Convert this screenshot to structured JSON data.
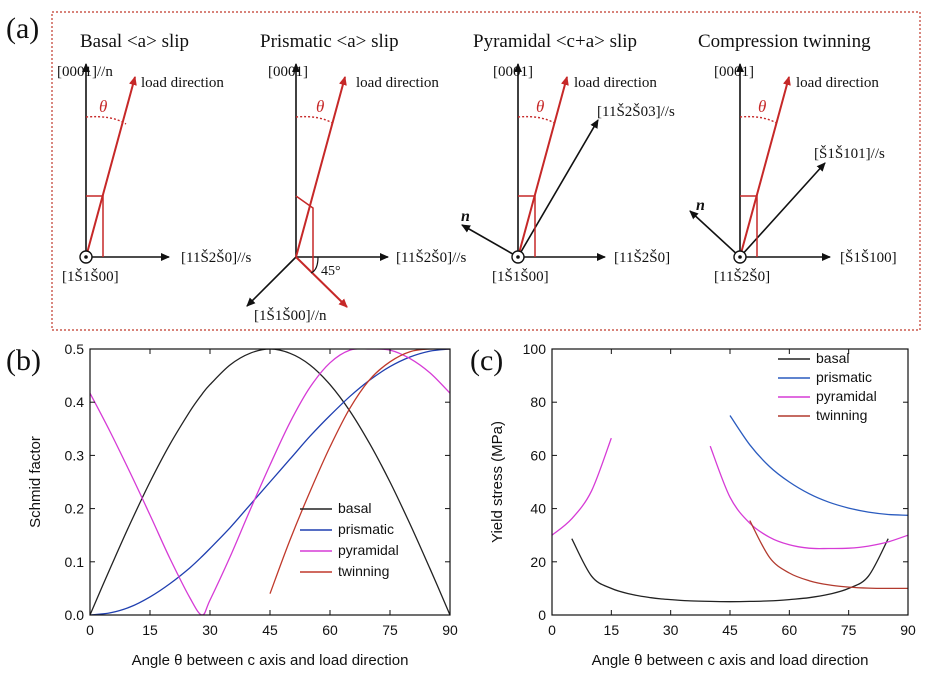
{
  "panels": {
    "a": {
      "label": "(a)",
      "colors": {
        "frame": "#c0392b",
        "red": "#c62828",
        "black": "#111111"
      },
      "diagrams": [
        {
          "title": "Basal <a> slip",
          "vertical_label": "[0001]//n",
          "horizontal_label": "[11Š2Š0]//s",
          "origin_label": "[1Š1Š00]",
          "load_label": "load direction",
          "theta": "θ"
        },
        {
          "title": "Prismatic <a> slip",
          "vertical_label": "[0001]",
          "horizontal_label": "[11Š2Š0]//s",
          "diagonal_label": "[1Š1Š00]//n",
          "angle_label": "45°",
          "load_label": "load direction",
          "theta": "θ"
        },
        {
          "title": "Pyramidal <c+a> slip",
          "vertical_label": "[0001]",
          "horizontal_label": "[11Š2Š0]",
          "slip_label": "[11Š2Š03]//s",
          "normal_label": "n",
          "origin_label": "[1Š1Š00]",
          "load_label": "load direction",
          "theta": "θ"
        },
        {
          "title": "Compression twinning",
          "vertical_label": "[0001]",
          "horizontal_label": "[Š1Š100]",
          "slip_label": "[Š1Š101]//s",
          "normal_label": "n",
          "origin_label": "[11Š2Š0]",
          "load_label": "load direction",
          "theta": "θ"
        }
      ]
    },
    "b": {
      "label": "(b)"
    },
    "c": {
      "label": "(c)"
    }
  },
  "chart_data": [
    {
      "id": "b",
      "type": "line",
      "xlabel": "Angle θ between c axis and load direction",
      "ylabel": "Schmid factor",
      "xlim": [
        0,
        90
      ],
      "ylim": [
        0,
        0.5
      ],
      "xticks": [
        0,
        15,
        30,
        45,
        60,
        75,
        90
      ],
      "yticks": [
        0.0,
        0.1,
        0.2,
        0.3,
        0.4,
        0.5
      ],
      "ytick_labels": [
        "0.0",
        "0.1",
        "0.2",
        "0.3",
        "0.4",
        "0.5"
      ],
      "legend_position": "bottom-right",
      "x": [
        0,
        5,
        10,
        15,
        20,
        25,
        28,
        30,
        35,
        40,
        45,
        50,
        55,
        60,
        65,
        70,
        75,
        80,
        85,
        90
      ],
      "series": [
        {
          "name": "basal",
          "color": "#222222",
          "values": [
            0.0,
            0.087,
            0.171,
            0.25,
            0.321,
            0.383,
            0.415,
            0.433,
            0.47,
            0.492,
            0.5,
            0.492,
            0.47,
            0.433,
            0.383,
            0.321,
            0.25,
            0.171,
            0.087,
            0.0
          ]
        },
        {
          "name": "prismatic",
          "color": "#1f3fb0",
          "values": [
            0.0,
            0.004,
            0.015,
            0.034,
            0.059,
            0.089,
            0.11,
            0.125,
            0.164,
            0.207,
            0.25,
            0.293,
            0.336,
            0.375,
            0.411,
            0.442,
            0.467,
            0.485,
            0.496,
            0.5
          ]
        },
        {
          "name": "pyramidal",
          "color": "#d63bd6",
          "values": [
            0.417,
            0.345,
            0.268,
            0.188,
            0.106,
            0.032,
            0.0,
            0.028,
            0.109,
            0.197,
            0.282,
            0.362,
            0.428,
            0.474,
            0.498,
            0.5,
            0.498,
            0.482,
            0.455,
            0.417
          ]
        },
        {
          "name": "twinning",
          "color": "#c0392b",
          "values": [
            null,
            null,
            null,
            null,
            null,
            null,
            null,
            null,
            null,
            null,
            0.04,
            0.141,
            0.232,
            0.316,
            0.389,
            0.443,
            0.476,
            0.495,
            0.5,
            0.5
          ]
        }
      ]
    },
    {
      "id": "c",
      "type": "line",
      "xlabel": "Angle θ between c axis and load direction",
      "ylabel": "Yield stress (MPa)",
      "xlim": [
        0,
        90
      ],
      "ylim": [
        0,
        100
      ],
      "xticks": [
        0,
        15,
        30,
        45,
        60,
        75,
        90
      ],
      "yticks": [
        0,
        20,
        40,
        60,
        80,
        100
      ],
      "ytick_labels": [
        "0",
        "20",
        "40",
        "60",
        "80",
        "100"
      ],
      "legend_position": "top-right",
      "x": [
        0,
        5,
        10,
        15,
        20,
        25,
        28,
        30,
        35,
        40,
        45,
        50,
        55,
        60,
        65,
        70,
        75,
        80,
        85,
        90
      ],
      "series": [
        {
          "name": "basal",
          "color": "#222222",
          "values": [
            null,
            28.7,
            14.6,
            10.0,
            7.8,
            6.5,
            6.0,
            5.8,
            5.3,
            5.1,
            5.0,
            5.1,
            5.3,
            5.8,
            6.5,
            7.8,
            10.0,
            14.6,
            28.7,
            null
          ]
        },
        {
          "name": "prismatic",
          "color": "#2a5bbf",
          "values": [
            null,
            null,
            null,
            null,
            null,
            null,
            null,
            null,
            null,
            null,
            75.0,
            64.0,
            55.8,
            50.0,
            45.6,
            42.4,
            40.2,
            38.7,
            37.8,
            37.5
          ]
        },
        {
          "name": "pyramidal",
          "color": "#d63bd6",
          "values": [
            30.0,
            36.2,
            46.7,
            66.5,
            null,
            null,
            null,
            null,
            null,
            63.5,
            44.3,
            34.5,
            29.2,
            26.4,
            25.1,
            25.0,
            25.1,
            25.9,
            27.5,
            30.0
          ]
        },
        {
          "name": "twinning",
          "color": "#b23a2e",
          "values": [
            null,
            null,
            null,
            null,
            null,
            null,
            null,
            null,
            null,
            null,
            null,
            35.5,
            21.6,
            15.8,
            12.9,
            11.3,
            10.5,
            10.1,
            10.0,
            10.0
          ]
        }
      ]
    }
  ]
}
